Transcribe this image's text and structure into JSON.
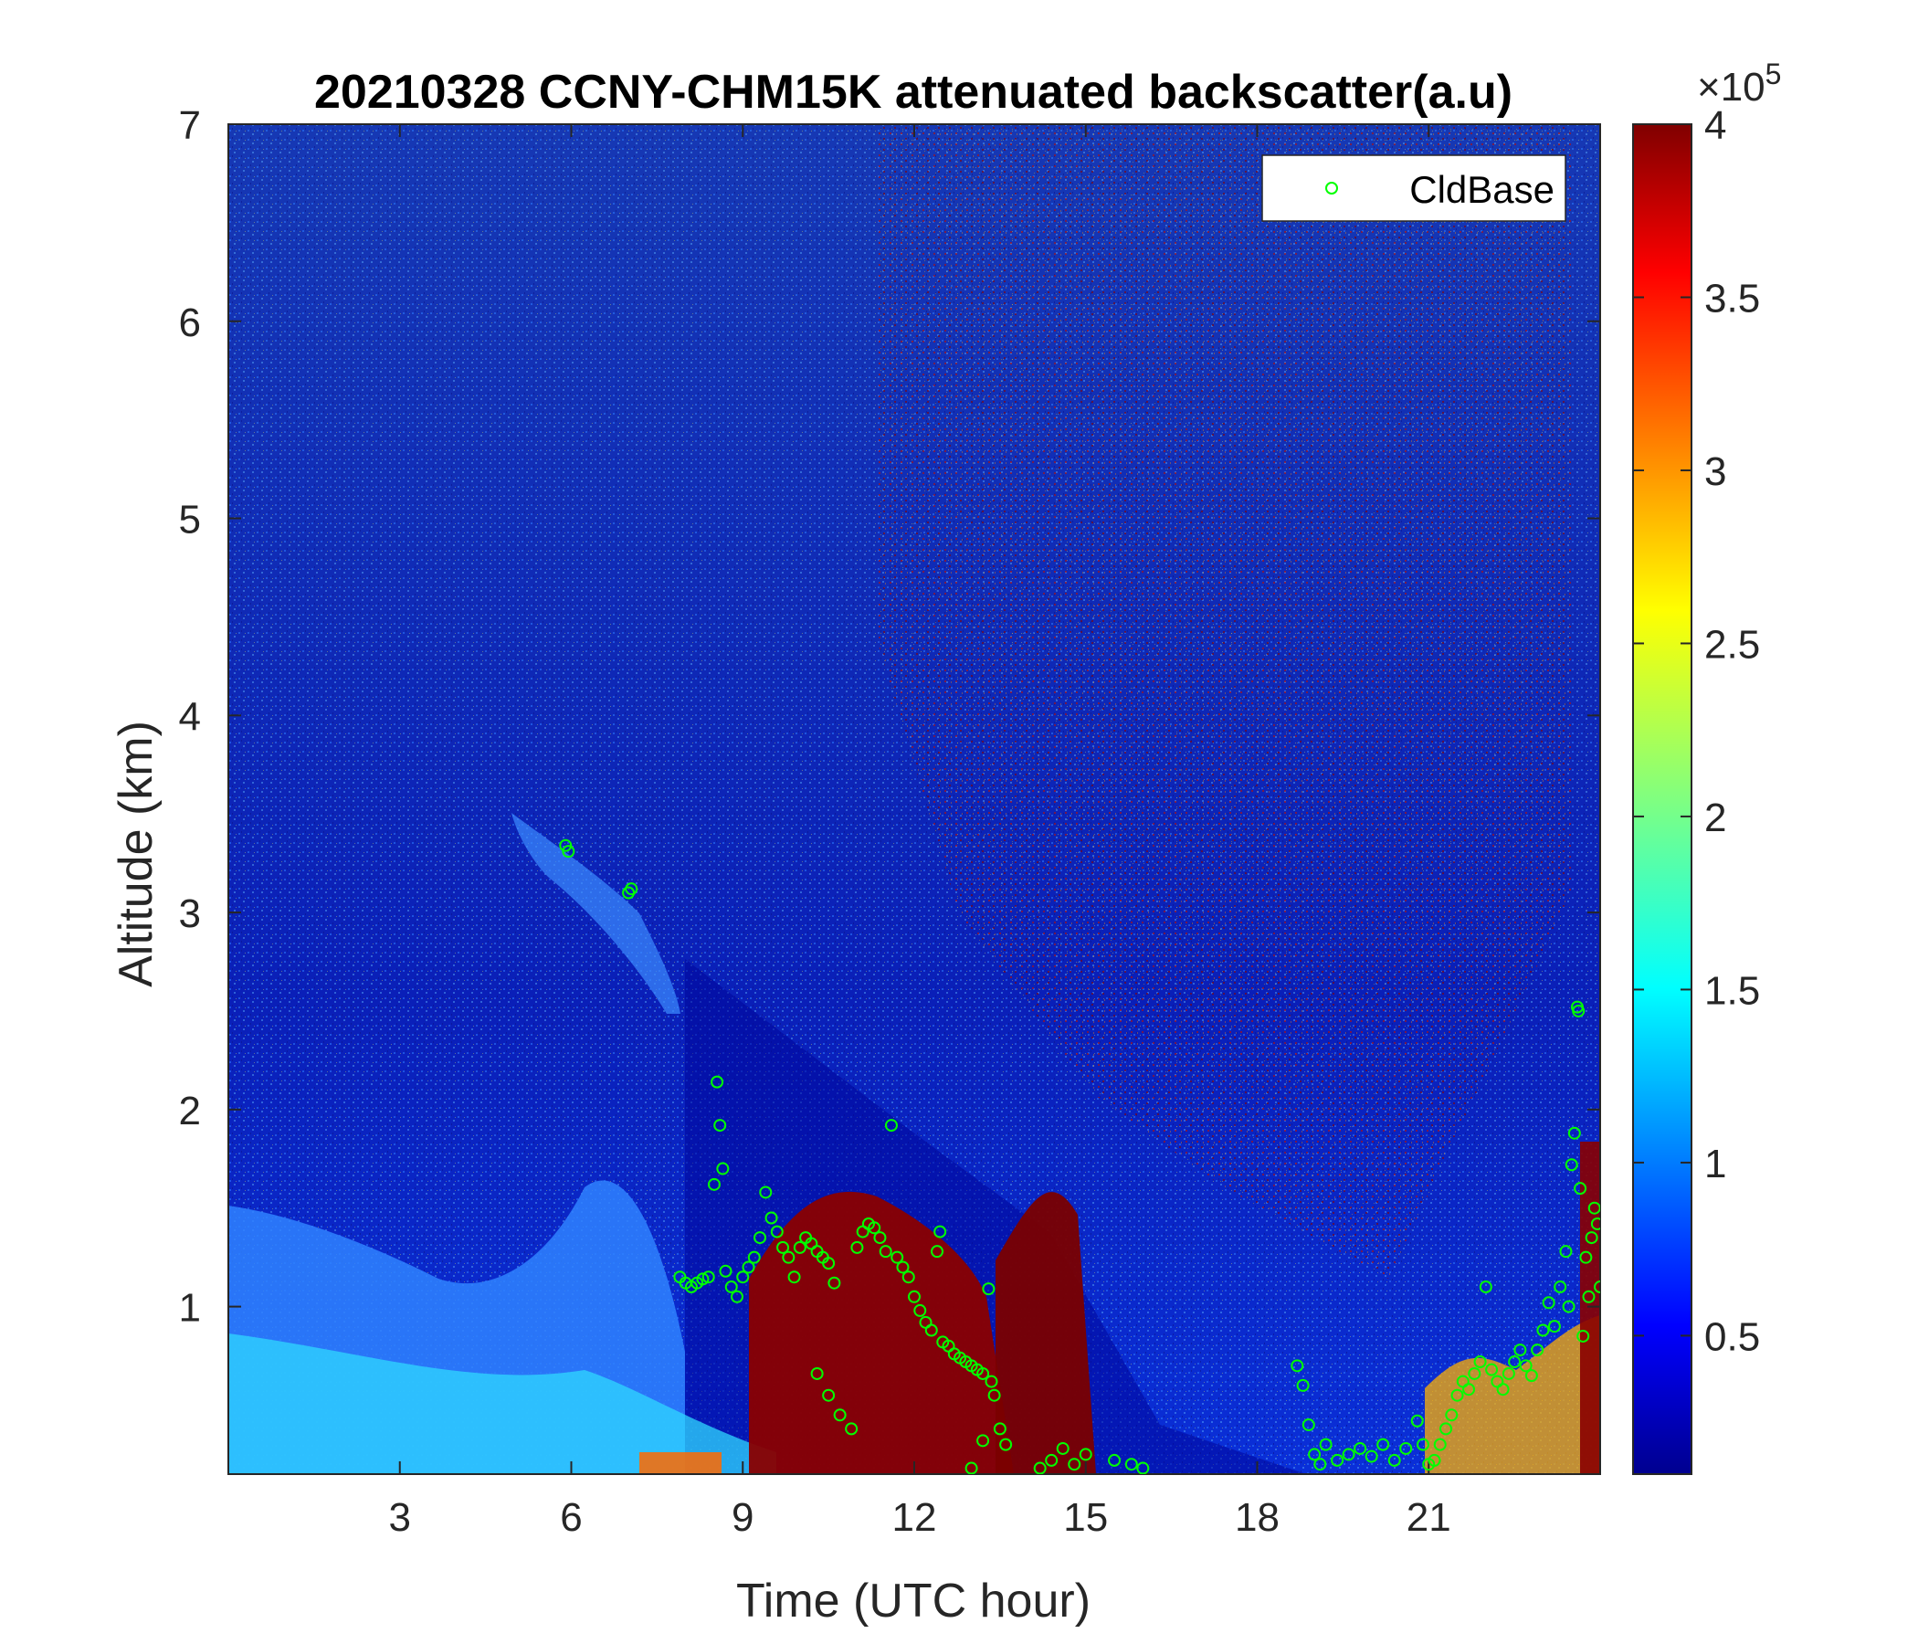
{
  "chart_data": {
    "type": "heatmap",
    "title": "20210328 CCNY-CHM15K attenuated backscatter(a.u)",
    "xlabel": "Time (UTC hour)",
    "ylabel": "Altitude (km)",
    "xlim": [
      0,
      24
    ],
    "ylim": [
      0.15,
      7
    ],
    "x_ticks": [
      "3",
      "6",
      "9",
      "12",
      "15",
      "18",
      "21"
    ],
    "y_ticks": [
      "1",
      "2",
      "3",
      "4",
      "5",
      "6",
      "7"
    ],
    "colorbar": {
      "colormap": "jet",
      "range": [
        0.1,
        4
      ],
      "ticks": [
        "0.5",
        "1",
        "1.5",
        "2",
        "2.5",
        "3",
        "3.5",
        "4"
      ],
      "exponent_label": "×10",
      "exponent": "5"
    },
    "legend": {
      "location": "top-right",
      "entries": [
        "CldBase"
      ]
    },
    "series": [
      {
        "name": "CldBase",
        "marker": "open-circle",
        "color": "#00ff00",
        "points": [
          [
            5.9,
            3.34
          ],
          [
            5.95,
            3.31
          ],
          [
            7.0,
            3.1
          ],
          [
            7.05,
            3.12
          ],
          [
            7.9,
            1.15
          ],
          [
            8.0,
            1.12
          ],
          [
            8.1,
            1.1
          ],
          [
            8.2,
            1.12
          ],
          [
            8.3,
            1.14
          ],
          [
            8.4,
            1.15
          ],
          [
            8.5,
            1.62
          ],
          [
            8.55,
            2.14
          ],
          [
            8.6,
            1.92
          ],
          [
            8.65,
            1.7
          ],
          [
            8.7,
            1.18
          ],
          [
            8.8,
            1.1
          ],
          [
            8.9,
            1.05
          ],
          [
            9.0,
            1.15
          ],
          [
            9.1,
            1.2
          ],
          [
            9.2,
            1.25
          ],
          [
            9.3,
            1.35
          ],
          [
            9.4,
            1.58
          ],
          [
            9.5,
            1.45
          ],
          [
            9.6,
            1.38
          ],
          [
            9.7,
            1.3
          ],
          [
            9.8,
            1.25
          ],
          [
            9.9,
            1.15
          ],
          [
            10.0,
            1.3
          ],
          [
            10.1,
            1.35
          ],
          [
            10.2,
            1.32
          ],
          [
            10.3,
            1.28
          ],
          [
            10.4,
            1.25
          ],
          [
            10.5,
            1.22
          ],
          [
            10.6,
            1.12
          ],
          [
            10.3,
            0.66
          ],
          [
            10.5,
            0.55
          ],
          [
            10.7,
            0.45
          ],
          [
            10.9,
            0.38
          ],
          [
            11.0,
            1.3
          ],
          [
            11.1,
            1.38
          ],
          [
            11.2,
            1.42
          ],
          [
            11.3,
            1.4
          ],
          [
            11.4,
            1.35
          ],
          [
            11.5,
            1.28
          ],
          [
            11.6,
            1.92
          ],
          [
            11.7,
            1.25
          ],
          [
            11.8,
            1.2
          ],
          [
            11.9,
            1.15
          ],
          [
            12.0,
            1.05
          ],
          [
            12.1,
            0.98
          ],
          [
            12.2,
            0.92
          ],
          [
            12.3,
            0.88
          ],
          [
            12.4,
            1.28
          ],
          [
            12.45,
            1.38
          ],
          [
            12.5,
            0.82
          ],
          [
            12.6,
            0.8
          ],
          [
            12.7,
            0.76
          ],
          [
            12.8,
            0.74
          ],
          [
            12.9,
            0.72
          ],
          [
            13.0,
            0.7
          ],
          [
            13.1,
            0.68
          ],
          [
            13.2,
            0.66
          ],
          [
            13.3,
            1.09
          ],
          [
            13.35,
            0.62
          ],
          [
            13.4,
            0.55
          ],
          [
            13.5,
            0.38
          ],
          [
            13.6,
            0.3
          ],
          [
            13.0,
            0.18
          ],
          [
            13.2,
            0.32
          ],
          [
            14.2,
            0.18
          ],
          [
            14.4,
            0.22
          ],
          [
            14.6,
            0.28
          ],
          [
            14.8,
            0.2
          ],
          [
            15.0,
            0.25
          ],
          [
            15.5,
            0.22
          ],
          [
            15.8,
            0.2
          ],
          [
            16.0,
            0.18
          ],
          [
            18.7,
            0.7
          ],
          [
            18.8,
            0.6
          ],
          [
            18.9,
            0.4
          ],
          [
            19.0,
            0.25
          ],
          [
            19.1,
            0.2
          ],
          [
            19.2,
            0.3
          ],
          [
            19.4,
            0.22
          ],
          [
            19.6,
            0.25
          ],
          [
            19.8,
            0.28
          ],
          [
            20.0,
            0.24
          ],
          [
            20.2,
            0.3
          ],
          [
            20.4,
            0.22
          ],
          [
            20.6,
            0.28
          ],
          [
            20.8,
            0.42
          ],
          [
            20.9,
            0.3
          ],
          [
            21.0,
            0.2
          ],
          [
            21.1,
            0.22
          ],
          [
            21.2,
            0.3
          ],
          [
            21.3,
            0.38
          ],
          [
            21.4,
            0.45
          ],
          [
            21.5,
            0.55
          ],
          [
            21.6,
            0.62
          ],
          [
            21.7,
            0.58
          ],
          [
            21.8,
            0.66
          ],
          [
            21.9,
            0.72
          ],
          [
            22.0,
            1.1
          ],
          [
            22.1,
            0.68
          ],
          [
            22.2,
            0.62
          ],
          [
            22.3,
            0.58
          ],
          [
            22.4,
            0.66
          ],
          [
            22.5,
            0.72
          ],
          [
            22.6,
            0.78
          ],
          [
            22.7,
            0.7
          ],
          [
            22.8,
            0.65
          ],
          [
            22.9,
            0.78
          ],
          [
            23.0,
            0.88
          ],
          [
            23.1,
            1.02
          ],
          [
            23.2,
            0.9
          ],
          [
            23.3,
            1.1
          ],
          [
            23.4,
            1.28
          ],
          [
            23.45,
            1.0
          ],
          [
            23.5,
            1.72
          ],
          [
            23.55,
            1.88
          ],
          [
            23.6,
            2.52
          ],
          [
            23.62,
            2.5
          ],
          [
            23.65,
            1.6
          ],
          [
            23.7,
            0.85
          ],
          [
            23.75,
            1.25
          ],
          [
            23.8,
            1.05
          ],
          [
            23.85,
            1.35
          ],
          [
            23.9,
            1.5
          ],
          [
            23.95,
            1.42
          ],
          [
            24.0,
            1.1
          ]
        ]
      }
    ]
  }
}
